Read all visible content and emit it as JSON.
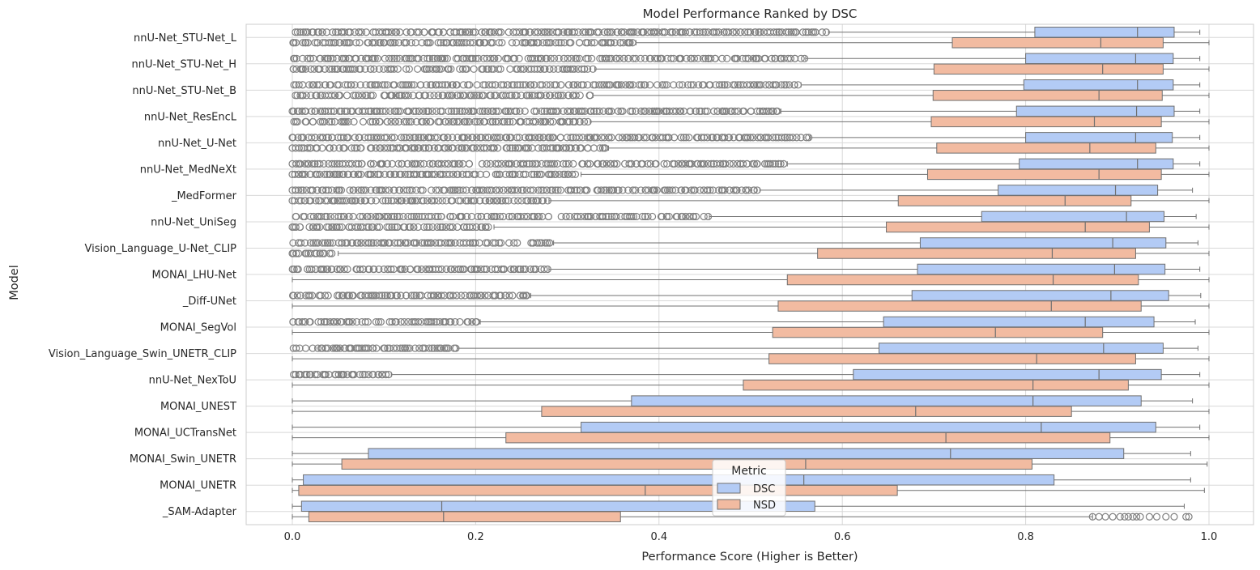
{
  "chart_data": {
    "type": "boxplot",
    "orientation": "horizontal",
    "title": "Model Performance Ranked by DSC",
    "xlabel": "Performance Score (Higher is Better)",
    "ylabel": "Model",
    "xlim": [
      -0.05,
      1.05
    ],
    "xticks": [
      "0.0",
      "0.2",
      "0.4",
      "0.6",
      "0.8",
      "1.0"
    ],
    "xtick_values": [
      0.0,
      0.2,
      0.4,
      0.6,
      0.8,
      1.0
    ],
    "grid": true,
    "legend": {
      "title": "Metric",
      "placement": "bottom-center",
      "entries": [
        "DSC",
        "NSD"
      ]
    },
    "colors": {
      "DSC": "#b3cbf5",
      "NSD": "#f2bba1",
      "edge": "#707070",
      "grid": "#d8d8d8",
      "background": "#ffffff"
    },
    "categories": [
      "nnU-Net_STU-Net_L",
      "nnU-Net_STU-Net_H",
      "nnU-Net_STU-Net_B",
      "nnU-Net_ResEncL",
      "nnU-Net_U-Net",
      "nnU-Net_MedNeXt",
      "_MedFormer",
      "nnU-Net_UniSeg",
      "Vision_Language_U-Net_CLIP",
      "MONAI_LHU-Net",
      "_Diff-UNet",
      "MONAI_SegVol",
      "Vision_Language_Swin_UNETR_CLIP",
      "nnU-Net_NexToU",
      "MONAI_UNEST",
      "MONAI_UCTransNet",
      "MONAI_Swin_UNETR",
      "MONAI_UNETR",
      "_SAM-Adapter"
    ],
    "series": [
      {
        "name": "DSC",
        "boxes": [
          {
            "whislo": 0.585,
            "q1": 0.81,
            "med": 0.922,
            "q3": 0.962,
            "whishi": 0.99,
            "outliers": {
              "from": 0.0,
              "to": 0.585
            }
          },
          {
            "whislo": 0.56,
            "q1": 0.8,
            "med": 0.92,
            "q3": 0.961,
            "whishi": 0.99,
            "outliers": {
              "from": 0.0,
              "to": 0.56
            }
          },
          {
            "whislo": 0.555,
            "q1": 0.798,
            "med": 0.922,
            "q3": 0.961,
            "whishi": 0.99,
            "outliers": {
              "from": 0.0,
              "to": 0.555
            }
          },
          {
            "whislo": 0.533,
            "q1": 0.79,
            "med": 0.921,
            "q3": 0.962,
            "whishi": 0.99,
            "outliers": {
              "from": 0.0,
              "to": 0.533
            }
          },
          {
            "whislo": 0.565,
            "q1": 0.8,
            "med": 0.92,
            "q3": 0.96,
            "whishi": 0.99,
            "outliers": {
              "from": 0.0,
              "to": 0.565
            }
          },
          {
            "whislo": 0.54,
            "q1": 0.793,
            "med": 0.922,
            "q3": 0.961,
            "whishi": 0.99,
            "outliers": {
              "from": 0.0,
              "to": 0.54
            }
          },
          {
            "whislo": 0.51,
            "q1": 0.77,
            "med": 0.898,
            "q3": 0.944,
            "whishi": 0.982,
            "outliers": {
              "from": 0.0,
              "to": 0.51
            }
          },
          {
            "whislo": 0.455,
            "q1": 0.752,
            "med": 0.91,
            "q3": 0.951,
            "whishi": 0.986,
            "outliers": {
              "from": 0.0,
              "to": 0.455
            }
          },
          {
            "whislo": 0.285,
            "q1": 0.685,
            "med": 0.895,
            "q3": 0.953,
            "whishi": 0.988,
            "outliers": {
              "from": 0.0,
              "to": 0.285
            }
          },
          {
            "whislo": 0.28,
            "q1": 0.682,
            "med": 0.897,
            "q3": 0.952,
            "whishi": 0.99,
            "outliers": {
              "from": 0.0,
              "to": 0.28
            }
          },
          {
            "whislo": 0.26,
            "q1": 0.676,
            "med": 0.893,
            "q3": 0.956,
            "whishi": 0.991,
            "outliers": {
              "from": 0.0,
              "to": 0.26
            }
          },
          {
            "whislo": 0.205,
            "q1": 0.645,
            "med": 0.865,
            "q3": 0.94,
            "whishi": 0.985,
            "outliers": {
              "from": 0.0,
              "to": 0.205
            }
          },
          {
            "whislo": 0.18,
            "q1": 0.64,
            "med": 0.885,
            "q3": 0.95,
            "whishi": 0.988,
            "outliers": {
              "from": 0.0,
              "to": 0.18
            }
          },
          {
            "whislo": 0.108,
            "q1": 0.612,
            "med": 0.88,
            "q3": 0.948,
            "whishi": 0.99,
            "outliers": {
              "from": 0.0,
              "to": 0.108
            }
          },
          {
            "whislo": 0.0,
            "q1": 0.37,
            "med": 0.808,
            "q3": 0.926,
            "whishi": 0.982,
            "outliers": null
          },
          {
            "whislo": 0.0,
            "q1": 0.315,
            "med": 0.817,
            "q3": 0.942,
            "whishi": 0.99,
            "outliers": null
          },
          {
            "whislo": 0.0,
            "q1": 0.083,
            "med": 0.718,
            "q3": 0.907,
            "whishi": 0.98,
            "outliers": null
          },
          {
            "whislo": 0.0,
            "q1": 0.012,
            "med": 0.558,
            "q3": 0.831,
            "whishi": 0.98,
            "outliers": null
          },
          {
            "whislo": 0.0,
            "q1": 0.01,
            "med": 0.163,
            "q3": 0.57,
            "whishi": 0.973,
            "outliers": null
          }
        ]
      },
      {
        "name": "NSD",
        "boxes": [
          {
            "whislo": 0.375,
            "q1": 0.72,
            "med": 0.882,
            "q3": 0.95,
            "whishi": 1.0,
            "outliers": {
              "from": 0.0,
              "to": 0.375
            }
          },
          {
            "whislo": 0.33,
            "q1": 0.7,
            "med": 0.884,
            "q3": 0.95,
            "whishi": 1.0,
            "outliers": {
              "from": 0.0,
              "to": 0.33
            }
          },
          {
            "whislo": 0.328,
            "q1": 0.699,
            "med": 0.88,
            "q3": 0.949,
            "whishi": 1.0,
            "outliers": {
              "from": 0.0,
              "to": 0.328
            }
          },
          {
            "whislo": 0.325,
            "q1": 0.697,
            "med": 0.875,
            "q3": 0.948,
            "whishi": 1.0,
            "outliers": {
              "from": 0.0,
              "to": 0.325
            }
          },
          {
            "whislo": 0.345,
            "q1": 0.703,
            "med": 0.87,
            "q3": 0.942,
            "whishi": 1.0,
            "outliers": {
              "from": 0.0,
              "to": 0.345
            }
          },
          {
            "whislo": 0.315,
            "q1": 0.693,
            "med": 0.88,
            "q3": 0.948,
            "whishi": 1.0,
            "outliers": {
              "from": 0.0,
              "to": 0.315
            }
          },
          {
            "whislo": 0.28,
            "q1": 0.661,
            "med": 0.843,
            "q3": 0.915,
            "whishi": 1.0,
            "outliers": {
              "from": 0.0,
              "to": 0.28
            }
          },
          {
            "whislo": 0.22,
            "q1": 0.648,
            "med": 0.865,
            "q3": 0.935,
            "whishi": 1.0,
            "outliers": {
              "from": 0.0,
              "to": 0.22
            }
          },
          {
            "whislo": 0.05,
            "q1": 0.573,
            "med": 0.829,
            "q3": 0.92,
            "whishi": 1.0,
            "outliers": {
              "from": 0.0,
              "to": 0.05
            }
          },
          {
            "whislo": 0.0,
            "q1": 0.54,
            "med": 0.83,
            "q3": 0.923,
            "whishi": 1.0,
            "outliers": null
          },
          {
            "whislo": 0.0,
            "q1": 0.53,
            "med": 0.828,
            "q3": 0.926,
            "whishi": 1.0,
            "outliers": null
          },
          {
            "whislo": 0.0,
            "q1": 0.524,
            "med": 0.767,
            "q3": 0.884,
            "whishi": 1.0,
            "outliers": null
          },
          {
            "whislo": 0.0,
            "q1": 0.52,
            "med": 0.812,
            "q3": 0.92,
            "whishi": 1.0,
            "outliers": null
          },
          {
            "whislo": 0.0,
            "q1": 0.492,
            "med": 0.808,
            "q3": 0.912,
            "whishi": 1.0,
            "outliers": null
          },
          {
            "whislo": 0.0,
            "q1": 0.272,
            "med": 0.68,
            "q3": 0.85,
            "whishi": 1.0,
            "outliers": null
          },
          {
            "whislo": 0.0,
            "q1": 0.233,
            "med": 0.713,
            "q3": 0.892,
            "whishi": 1.0,
            "outliers": null
          },
          {
            "whislo": 0.0,
            "q1": 0.054,
            "med": 0.56,
            "q3": 0.807,
            "whishi": 0.998,
            "outliers": null
          },
          {
            "whislo": 0.0,
            "q1": 0.007,
            "med": 0.385,
            "q3": 0.66,
            "whishi": 0.995,
            "outliers": null
          },
          {
            "whislo": 0.0,
            "q1": 0.018,
            "med": 0.165,
            "q3": 0.358,
            "whishi": 0.873,
            "outliers": {
              "values": [
                0.873,
                0.88,
                0.887,
                0.895,
                0.903,
                0.908,
                0.912,
                0.917,
                0.921,
                0.925,
                0.935,
                0.943,
                0.953,
                0.962,
                0.975,
                0.978
              ]
            }
          }
        ]
      }
    ]
  }
}
